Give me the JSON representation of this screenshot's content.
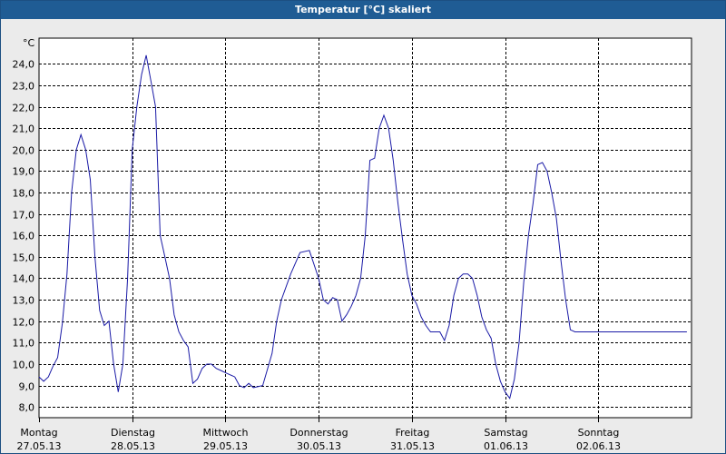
{
  "window": {
    "title": "Temperatur [°C] skaliert"
  },
  "colors": {
    "title_bar": "#1f5c94",
    "series": "#1a1aa6",
    "grid": "#000000",
    "plot_bg": "#ffffff"
  },
  "chart_data": {
    "type": "line",
    "title": "Temperatur [°C] skaliert",
    "unit": "°C",
    "ylim": [
      7.5,
      25.2
    ],
    "yticks": [
      "8,0",
      "9,0",
      "10,0",
      "11,0",
      "12,0",
      "13,0",
      "14,0",
      "15,0",
      "16,0",
      "17,0",
      "18,0",
      "19,0",
      "20,0",
      "21,0",
      "22,0",
      "23,0",
      "24,0"
    ],
    "ytick_values": [
      8,
      9,
      10,
      11,
      12,
      13,
      14,
      15,
      16,
      17,
      18,
      19,
      20,
      21,
      22,
      23,
      24
    ],
    "days": [
      {
        "weekday": "Montag",
        "date": "27.05.13"
      },
      {
        "weekday": "Dienstag",
        "date": "28.05.13"
      },
      {
        "weekday": "Mittwoch",
        "date": "29.05.13"
      },
      {
        "weekday": "Donnerstag",
        "date": "30.05.13"
      },
      {
        "weekday": "Freitag",
        "date": "31.05.13"
      },
      {
        "weekday": "Samstag",
        "date": "01.06.13"
      },
      {
        "weekday": "Sonntag",
        "date": "02.06.13"
      }
    ],
    "xlim_days": [
      0,
      7.0
    ],
    "grid": true,
    "series": [
      {
        "x": [
          0,
          0.05,
          0.1,
          0.15,
          0.2,
          0.25,
          0.3,
          0.35,
          0.4,
          0.45,
          0.5,
          0.55,
          0.6,
          0.65,
          0.7,
          0.75,
          0.8,
          0.85,
          0.9,
          0.95,
          1.0,
          1.05,
          1.1,
          1.15,
          1.2,
          1.25,
          1.3,
          1.35,
          1.4,
          1.45,
          1.5,
          1.55,
          1.6,
          1.65,
          1.7,
          1.75,
          1.8,
          1.85,
          1.9,
          1.95,
          2.0,
          2.05,
          2.1,
          2.15,
          2.2,
          2.25,
          2.3,
          2.4,
          2.5,
          2.55,
          2.6,
          2.7,
          2.8,
          2.9,
          3.0,
          3.05,
          3.1,
          3.15,
          3.2,
          3.25,
          3.3,
          3.35,
          3.4,
          3.45,
          3.5,
          3.55,
          3.6,
          3.65,
          3.7,
          3.75,
          3.8,
          3.85,
          3.9,
          3.95,
          4.0,
          4.05,
          4.1,
          4.15,
          4.2,
          4.25,
          4.3,
          4.35,
          4.4,
          4.45,
          4.5,
          4.55,
          4.6,
          4.65,
          4.7,
          4.75,
          4.8,
          4.85,
          4.9,
          4.95,
          5.0,
          5.05,
          5.1,
          5.15,
          5.2,
          5.25,
          5.3,
          5.35,
          5.4,
          5.45,
          5.5,
          5.55,
          5.6,
          5.65,
          5.7,
          5.75,
          5.8,
          5.85,
          5.9,
          5.95,
          6.0,
          6.05,
          6.1,
          6.15,
          6.2,
          6.25,
          6.3,
          6.35,
          6.4,
          6.45,
          6.5,
          6.55,
          6.6,
          6.65,
          6.7,
          6.75,
          6.8,
          6.85,
          6.9,
          6.95,
          7.0
        ],
        "y": [
          9.4,
          9.2,
          9.4,
          9.9,
          10.3,
          11.9,
          14.2,
          18.0,
          20.0,
          20.7,
          20.0,
          18.6,
          15.0,
          12.5,
          11.8,
          12.0,
          10.0,
          8.7,
          10.0,
          14.0,
          20.0,
          22.0,
          23.5,
          24.4,
          23.2,
          22.0,
          16.0,
          15.0,
          14.0,
          12.3,
          11.5,
          11.1,
          10.8,
          9.1,
          9.3,
          9.8,
          10.0,
          10.0,
          9.8,
          9.7,
          9.6,
          9.5,
          9.4,
          9.0,
          8.9,
          9.1,
          8.9,
          9.0,
          10.5,
          12.0,
          13.0,
          14.2,
          15.2,
          15.3,
          14.0,
          13.0,
          12.8,
          13.1,
          13.0,
          12.0,
          12.3,
          12.7,
          13.2,
          14.0,
          16.0,
          19.5,
          19.6,
          21.0,
          21.6,
          21.0,
          19.5,
          17.5,
          15.8,
          14.2,
          13.2,
          12.8,
          12.2,
          11.8,
          11.5,
          11.5,
          11.5,
          11.1,
          11.8,
          13.2,
          14.0,
          14.2,
          14.2,
          14.0,
          13.2,
          12.2,
          11.6,
          11.2,
          10.0,
          9.2,
          8.7,
          8.4,
          9.3,
          11.0,
          13.8,
          16.0,
          17.5,
          19.3,
          19.4,
          19.0,
          18.0,
          16.8,
          14.8,
          13.0,
          11.6,
          11.5,
          11.5,
          11.5,
          11.5,
          11.5,
          11.5,
          11.5,
          11.5,
          11.5,
          11.5,
          11.5,
          11.5,
          11.5,
          11.5,
          11.5,
          11.5,
          11.5,
          11.5,
          11.5,
          11.5,
          11.5,
          11.5,
          11.5,
          11.5,
          11.5,
          11.5
        ]
      }
    ]
  }
}
